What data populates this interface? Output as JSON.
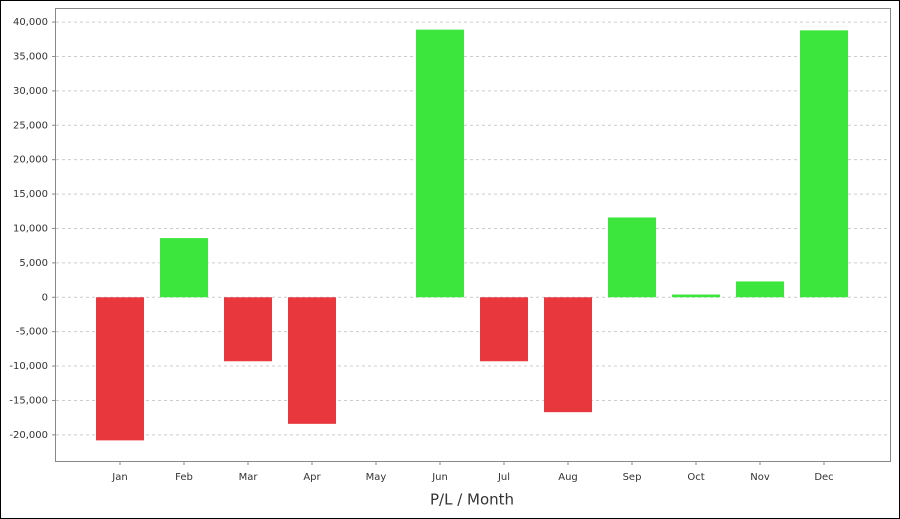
{
  "chart_data": {
    "type": "bar",
    "x_label": "P/L / Month",
    "categories": [
      "Jan",
      "Feb",
      "Mar",
      "Apr",
      "May",
      "Jun",
      "Jul",
      "Aug",
      "Sep",
      "Oct",
      "Nov",
      "Dec"
    ],
    "values": [
      -20800,
      8600,
      -9300,
      -18400,
      0,
      38900,
      -9300,
      -16700,
      11600,
      400,
      2300,
      38800
    ],
    "positive_color": "#3de63d",
    "negative_color": "#e8383d",
    "ylim": [
      -23800,
      41900
    ],
    "yticks": [
      {
        "value": -20000,
        "label": "-20,000"
      },
      {
        "value": -15000,
        "label": "-15,000"
      },
      {
        "value": -10000,
        "label": "-10,000"
      },
      {
        "value": -5000,
        "label": "-5,000"
      },
      0,
      {
        "value": 5000,
        "label": "5,000"
      },
      {
        "value": 10000,
        "label": "10,000"
      },
      {
        "value": 15000,
        "label": "15,000"
      },
      {
        "value": 20000,
        "label": "20,000"
      },
      {
        "value": 25000,
        "label": "25,000"
      },
      {
        "value": 30000,
        "label": "30,000"
      },
      {
        "value": 35000,
        "label": "35,000"
      },
      {
        "value": 40000,
        "label": "40,000"
      }
    ],
    "grid": true
  }
}
